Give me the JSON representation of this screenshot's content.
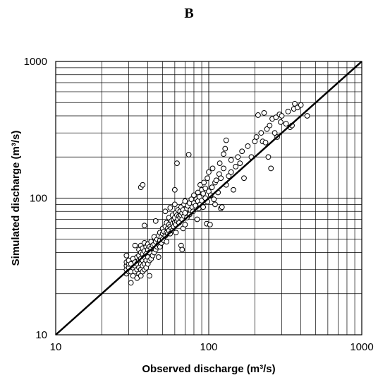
{
  "chart_data": {
    "type": "scatter",
    "panel_label": "B",
    "xlabel": "Observed discharge (m³/s)",
    "ylabel": "Simulated discharge (m³/s)",
    "xscale": "log",
    "yscale": "log",
    "xlim": [
      10,
      1000
    ],
    "ylim": [
      10,
      1000
    ],
    "grid": true,
    "x_tick_labels": [
      "10",
      "100",
      "1000"
    ],
    "y_tick_labels": [
      "10",
      "100",
      "1000"
    ],
    "reference_line": {
      "type": "1:1",
      "from": [
        10,
        10
      ],
      "to": [
        1000,
        1000
      ]
    },
    "marker": "open-circle",
    "points": [
      [
        29,
        28
      ],
      [
        29,
        30
      ],
      [
        29,
        32
      ],
      [
        29,
        34
      ],
      [
        29,
        38
      ],
      [
        30,
        29
      ],
      [
        30,
        31
      ],
      [
        30,
        33
      ],
      [
        30,
        35
      ],
      [
        31,
        24
      ],
      [
        31,
        29
      ],
      [
        31,
        33
      ],
      [
        32,
        27
      ],
      [
        32,
        31
      ],
      [
        32,
        36
      ],
      [
        33,
        29
      ],
      [
        33,
        32
      ],
      [
        33,
        34
      ],
      [
        33,
        45
      ],
      [
        34,
        26
      ],
      [
        34,
        30
      ],
      [
        34,
        33
      ],
      [
        34,
        37
      ],
      [
        35,
        28
      ],
      [
        35,
        31
      ],
      [
        35,
        35
      ],
      [
        35,
        38
      ],
      [
        35,
        42
      ],
      [
        36,
        27
      ],
      [
        36,
        30
      ],
      [
        36,
        33
      ],
      [
        36,
        36
      ],
      [
        36,
        40
      ],
      [
        36,
        45
      ],
      [
        36,
        120
      ],
      [
        37,
        29
      ],
      [
        37,
        32
      ],
      [
        37,
        35
      ],
      [
        37,
        39
      ],
      [
        37,
        43
      ],
      [
        37,
        125
      ],
      [
        38,
        30
      ],
      [
        38,
        33
      ],
      [
        38,
        37
      ],
      [
        38,
        41
      ],
      [
        38,
        47
      ],
      [
        38,
        63
      ],
      [
        39,
        31
      ],
      [
        39,
        35
      ],
      [
        39,
        39
      ],
      [
        39,
        44
      ],
      [
        40,
        33
      ],
      [
        40,
        37
      ],
      [
        40,
        42
      ],
      [
        40,
        46
      ],
      [
        41,
        27
      ],
      [
        41,
        35
      ],
      [
        41,
        40
      ],
      [
        41,
        44
      ],
      [
        42,
        36
      ],
      [
        42,
        43
      ],
      [
        42,
        48
      ],
      [
        43,
        38
      ],
      [
        43,
        45
      ],
      [
        44,
        40
      ],
      [
        44,
        46
      ],
      [
        44,
        52
      ],
      [
        45,
        42
      ],
      [
        45,
        48
      ],
      [
        45,
        68
      ],
      [
        46,
        44
      ],
      [
        46,
        50
      ],
      [
        47,
        37
      ],
      [
        47,
        46
      ],
      [
        47,
        53
      ],
      [
        48,
        44
      ],
      [
        48,
        49
      ],
      [
        48,
        56
      ],
      [
        49,
        47
      ],
      [
        49,
        52
      ],
      [
        50,
        50
      ],
      [
        50,
        55
      ],
      [
        50,
        60
      ],
      [
        51,
        49
      ],
      [
        51,
        57
      ],
      [
        52,
        53
      ],
      [
        52,
        62
      ],
      [
        52,
        80
      ],
      [
        53,
        48
      ],
      [
        53,
        56
      ],
      [
        53,
        66
      ],
      [
        54,
        55
      ],
      [
        54,
        60
      ],
      [
        55,
        58
      ],
      [
        55,
        64
      ],
      [
        55,
        72
      ],
      [
        56,
        55
      ],
      [
        56,
        62
      ],
      [
        56,
        85
      ],
      [
        57,
        60
      ],
      [
        57,
        68
      ],
      [
        58,
        58
      ],
      [
        58,
        65
      ],
      [
        58,
        75
      ],
      [
        59,
        62
      ],
      [
        59,
        70
      ],
      [
        60,
        66
      ],
      [
        60,
        72
      ],
      [
        60,
        90
      ],
      [
        60,
        115
      ],
      [
        61,
        56
      ],
      [
        61,
        64
      ],
      [
        61,
        78
      ],
      [
        62,
        68
      ],
      [
        62,
        75
      ],
      [
        62,
        180
      ],
      [
        63,
        70
      ],
      [
        63,
        82
      ],
      [
        64,
        66
      ],
      [
        64,
        74
      ],
      [
        65,
        72
      ],
      [
        65,
        80
      ],
      [
        66,
        45
      ],
      [
        66,
        75
      ],
      [
        66,
        86
      ],
      [
        67,
        42
      ],
      [
        67,
        70
      ],
      [
        67,
        78
      ],
      [
        68,
        60
      ],
      [
        68,
        82
      ],
      [
        69,
        74
      ],
      [
        69,
        90
      ],
      [
        70,
        64
      ],
      [
        70,
        78
      ],
      [
        70,
        95
      ],
      [
        72,
        72
      ],
      [
        72,
        84
      ],
      [
        73,
        88
      ],
      [
        74,
        208
      ],
      [
        75,
        76
      ],
      [
        75,
        92
      ],
      [
        76,
        82
      ],
      [
        77,
        98
      ],
      [
        78,
        86
      ],
      [
        79,
        80
      ],
      [
        80,
        92
      ],
      [
        80,
        105
      ],
      [
        82,
        88
      ],
      [
        83,
        98
      ],
      [
        84,
        70
      ],
      [
        85,
        95
      ],
      [
        85,
        110
      ],
      [
        86,
        84
      ],
      [
        87,
        102
      ],
      [
        88,
        90
      ],
      [
        88,
        125
      ],
      [
        90,
        96
      ],
      [
        90,
        115
      ],
      [
        92,
        86
      ],
      [
        92,
        108
      ],
      [
        93,
        130
      ],
      [
        95,
        100
      ],
      [
        95,
        118
      ],
      [
        97,
        65
      ],
      [
        98,
        94
      ],
      [
        98,
        140
      ],
      [
        100,
        112
      ],
      [
        100,
        155
      ],
      [
        102,
        64
      ],
      [
        103,
        105
      ],
      [
        105,
        120
      ],
      [
        106,
        165
      ],
      [
        108,
        98
      ],
      [
        110,
        90
      ],
      [
        110,
        130
      ],
      [
        112,
        135
      ],
      [
        115,
        110
      ],
      [
        117,
        150
      ],
      [
        118,
        180
      ],
      [
        120,
        84
      ],
      [
        120,
        140
      ],
      [
        122,
        86
      ],
      [
        125,
        165
      ],
      [
        125,
        210
      ],
      [
        128,
        230
      ],
      [
        130,
        125
      ],
      [
        130,
        265
      ],
      [
        135,
        145
      ],
      [
        140,
        155
      ],
      [
        140,
        190
      ],
      [
        145,
        115
      ],
      [
        150,
        170
      ],
      [
        155,
        200
      ],
      [
        160,
        180
      ],
      [
        165,
        220
      ],
      [
        170,
        140
      ],
      [
        180,
        240
      ],
      [
        190,
        200
      ],
      [
        200,
        260
      ],
      [
        205,
        280
      ],
      [
        210,
        405
      ],
      [
        220,
        300
      ],
      [
        225,
        260
      ],
      [
        230,
        420
      ],
      [
        235,
        255
      ],
      [
        240,
        320
      ],
      [
        245,
        200
      ],
      [
        250,
        340
      ],
      [
        255,
        165
      ],
      [
        260,
        380
      ],
      [
        270,
        300
      ],
      [
        275,
        390
      ],
      [
        280,
        280
      ],
      [
        290,
        410
      ],
      [
        295,
        360
      ],
      [
        300,
        400
      ],
      [
        320,
        350
      ],
      [
        330,
        430
      ],
      [
        340,
        330
      ],
      [
        350,
        340
      ],
      [
        360,
        450
      ],
      [
        365,
        490
      ],
      [
        380,
        460
      ],
      [
        400,
        480
      ],
      [
        440,
        400
      ]
    ]
  }
}
